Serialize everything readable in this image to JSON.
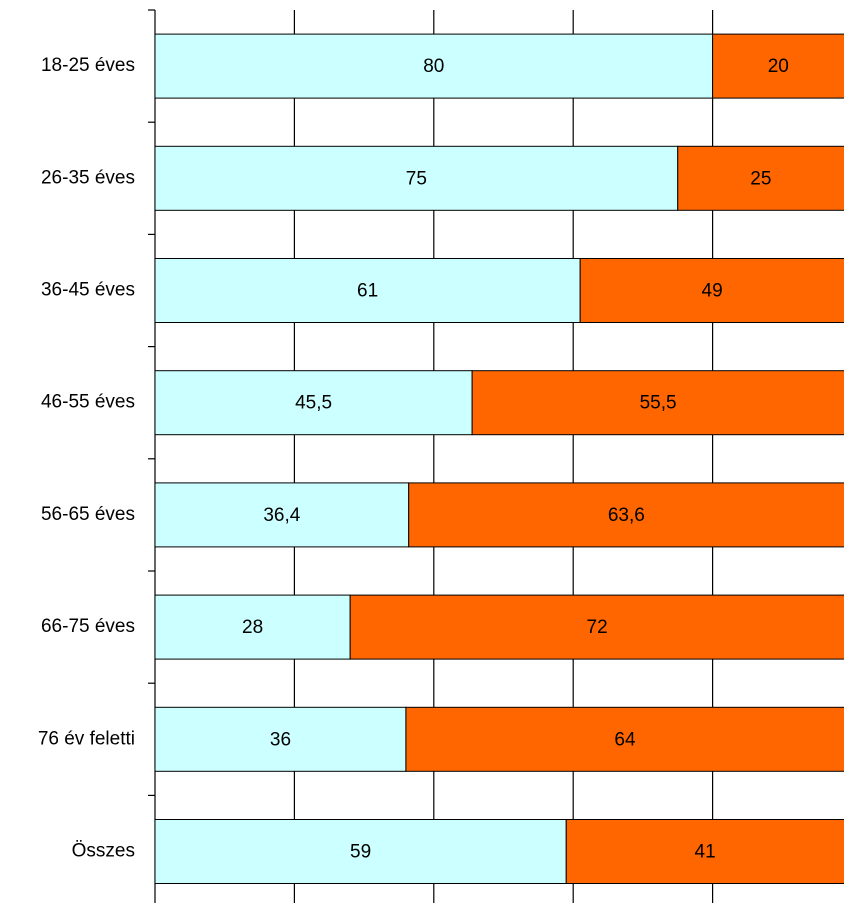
{
  "chart_data": {
    "type": "stacked-bar-horizontal",
    "categories": [
      "18-25 éves",
      "26-35 éves",
      "36-45 éves",
      "46-55 éves",
      "56-65 éves",
      "66-75 éves",
      "76 év feletti",
      "Összes"
    ],
    "series": [
      {
        "color": "#ccffff",
        "values": [
          80,
          75,
          61,
          45.5,
          36.4,
          28,
          36,
          59
        ],
        "value_labels": [
          "80",
          "75",
          "61",
          "45,5",
          "36,4",
          "28",
          "36",
          "59"
        ]
      },
      {
        "color": "#ff6600",
        "values": [
          20,
          25,
          49,
          55.5,
          63.6,
          72,
          64,
          41
        ],
        "value_labels": [
          "20",
          "25",
          "49",
          "55,5",
          "63,6",
          "72",
          "64",
          "41"
        ]
      }
    ],
    "xlim": [
      0,
      100
    ],
    "xticks": [
      0,
      20,
      40,
      60,
      80,
      100
    ],
    "grid": true
  }
}
